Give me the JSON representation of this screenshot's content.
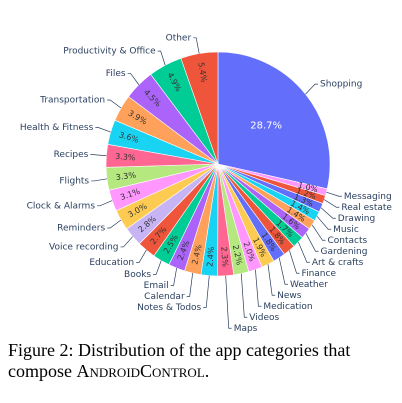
{
  "chart_data": {
    "type": "pie",
    "categories": [
      "Shopping",
      "Messaging",
      "Real estate",
      "Drawing",
      "Music",
      "Contacts",
      "Gardening",
      "Art & crafts",
      "Finance",
      "Weather",
      "News",
      "Medication",
      "Videos",
      "Maps",
      "Notes & Todos",
      "Calendar",
      "Email",
      "Books",
      "Education",
      "Voice recording",
      "Reminders",
      "Clock & Alarms",
      "Flights",
      "Recipes",
      "Health & Fitness",
      "Transportation",
      "Files",
      "Productivity & Office",
      "Other"
    ],
    "values": [
      28.7,
      1.0,
      1.2,
      1.3,
      1.4,
      1.4,
      1.6,
      1.7,
      1.8,
      1.8,
      1.9,
      2.0,
      2.2,
      2.3,
      2.4,
      2.4,
      2.4,
      2.5,
      2.7,
      2.8,
      3.0,
      3.1,
      3.3,
      3.3,
      3.6,
      3.9,
      4.5,
      4.9,
      5.4
    ],
    "value_labels": [
      "28.7%",
      "1.0%",
      "1.2%",
      "1.3%",
      "1.4%",
      "1.4%",
      "1.6%",
      "1.7%",
      "1.8%",
      "1.8%",
      "1.9%",
      "2.0%",
      "2.2%",
      "2.3%",
      "2.4%",
      "2.4%",
      "2.4%",
      "2.5%",
      "2.7%",
      "2.8%",
      "3.0%",
      "3.1%",
      "3.3%",
      "3.3%",
      "3.6%",
      "3.9%",
      "4.5%",
      "4.9%",
      "5.4%"
    ],
    "colors": [
      "#636efa",
      "#ff97ff",
      "#ef553b",
      "#636efa",
      "#19d3f3",
      "#ffa15a",
      "#ab63fa",
      "#00cc96",
      "#ef553b",
      "#636efa",
      "#fecb52",
      "#ff97ff",
      "#b6e880",
      "#ff6692",
      "#19d3f3",
      "#ffa15a",
      "#ab63fa",
      "#00cc96",
      "#ef553b",
      "#c6b4f5",
      "#fecb52",
      "#ff97ff",
      "#b6e880",
      "#ff6692",
      "#19d3f3",
      "#ffa15a",
      "#ab63fa",
      "#00cc96",
      "#ef553b"
    ],
    "direction": "clockwise"
  },
  "caption": {
    "text": "Figure 2: Distribution of the app categories that compose",
    "name": "AndroidControl."
  }
}
